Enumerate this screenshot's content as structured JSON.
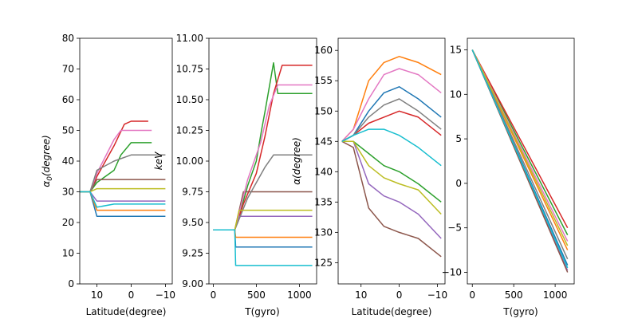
{
  "chart_data": [
    {
      "type": "line",
      "xlabel": "Latitude(degree)",
      "ylabel": "α₀(degree)",
      "ylabel_parts": {
        "sym": "α",
        "sub": "0",
        "rest": "(degree)"
      },
      "xlim": [
        15,
        -12
      ],
      "ylim": [
        0,
        80
      ],
      "xticks": [
        10,
        0,
        -10
      ],
      "xtick_labels": [
        "10",
        "0",
        "−10"
      ],
      "yticks": [
        0,
        10,
        20,
        30,
        40,
        50,
        60,
        70,
        80
      ],
      "ytick_labels": [
        "0",
        "10",
        "20",
        "30",
        "40",
        "50",
        "60",
        "70",
        "80"
      ],
      "grid": false,
      "description_of_series": "Many particle trajectories: pitch angle starts near 30 deg at latitude ~14, scatters into bands between ~20 and ~56 deg and continues to latitude ~-10",
      "series": [
        {
          "color": "#1f77b4",
          "x": [
            15,
            12,
            10,
            5,
            0,
            -5,
            -10
          ],
          "y": [
            30,
            30,
            22,
            22,
            22,
            22,
            22
          ]
        },
        {
          "color": "#ff7f0e",
          "x": [
            15,
            12,
            10,
            5,
            0,
            -5,
            -10
          ],
          "y": [
            30,
            30,
            24,
            24,
            24,
            24,
            24
          ]
        },
        {
          "color": "#2ca02c",
          "x": [
            15,
            12,
            10,
            5,
            3,
            0,
            -5,
            -6
          ],
          "y": [
            30,
            30,
            33,
            37,
            42,
            46,
            46,
            46
          ]
        },
        {
          "color": "#d62728",
          "x": [
            15,
            12,
            10,
            5,
            2,
            0,
            -5
          ],
          "y": [
            30,
            30,
            35,
            45,
            52,
            53,
            53
          ]
        },
        {
          "color": "#9467bd",
          "x": [
            15,
            12,
            10,
            5,
            0,
            -5,
            -10
          ],
          "y": [
            30,
            30,
            27,
            27,
            27,
            27,
            27
          ]
        },
        {
          "color": "#8c564b",
          "x": [
            15,
            12,
            10,
            5,
            0,
            -5,
            -10
          ],
          "y": [
            30,
            30,
            34,
            34,
            34,
            34,
            34
          ]
        },
        {
          "color": "#e377c2",
          "x": [
            15,
            12,
            10,
            5,
            3,
            0,
            -6
          ],
          "y": [
            30,
            30,
            36,
            47,
            50,
            50,
            50
          ]
        },
        {
          "color": "#7f7f7f",
          "x": [
            15,
            12,
            10,
            5,
            0,
            -5,
            -10
          ],
          "y": [
            30,
            30,
            37,
            40,
            42,
            42,
            42
          ]
        },
        {
          "color": "#bcbd22",
          "x": [
            15,
            12,
            10,
            5,
            0,
            -5,
            -10
          ],
          "y": [
            30,
            30,
            31,
            31,
            31,
            31,
            31
          ]
        },
        {
          "color": "#17becf",
          "x": [
            15,
            12,
            10,
            5,
            0,
            -5,
            -10
          ],
          "y": [
            30,
            30,
            25,
            26,
            26,
            26,
            26
          ]
        }
      ]
    },
    {
      "type": "line",
      "xlabel": "T(gyro)",
      "ylabel": "keV",
      "xlim": [
        -50,
        1200
      ],
      "ylim": [
        9.0,
        11.0
      ],
      "xticks": [
        0,
        500,
        1000
      ],
      "xtick_labels": [
        "0",
        "500",
        "1000"
      ],
      "yticks": [
        9.0,
        9.25,
        9.5,
        9.75,
        10.0,
        10.25,
        10.5,
        10.75,
        11.0
      ],
      "ytick_labels": [
        "9.00",
        "9.25",
        "9.50",
        "9.75",
        "10.00",
        "10.25",
        "10.50",
        "10.75",
        "11.00"
      ],
      "grid": false,
      "description_of_series": "Energy of many particles starts near 9.44 keV and splits into flat levels between ~9.1 and ~10.8 keV after T~250",
      "series": [
        {
          "color": "#1f77b4",
          "x": [
            0,
            250,
            260,
            1150
          ],
          "y": [
            9.44,
            9.44,
            9.3,
            9.3
          ]
        },
        {
          "color": "#ff7f0e",
          "x": [
            0,
            250,
            260,
            1150
          ],
          "y": [
            9.44,
            9.44,
            9.38,
            9.38
          ]
        },
        {
          "color": "#2ca02c",
          "x": [
            0,
            250,
            300,
            400,
            500,
            560,
            600,
            700,
            750,
            1150
          ],
          "y": [
            9.44,
            9.44,
            9.55,
            9.8,
            10.0,
            10.25,
            10.4,
            10.8,
            10.55,
            10.55
          ]
        },
        {
          "color": "#d62728",
          "x": [
            0,
            250,
            350,
            500,
            600,
            700,
            800,
            1150
          ],
          "y": [
            9.44,
            9.44,
            9.65,
            9.9,
            10.2,
            10.55,
            10.78,
            10.78
          ]
        },
        {
          "color": "#9467bd",
          "x": [
            0,
            250,
            300,
            1150
          ],
          "y": [
            9.44,
            9.44,
            9.55,
            9.55
          ]
        },
        {
          "color": "#8c564b",
          "x": [
            0,
            250,
            350,
            1150
          ],
          "y": [
            9.44,
            9.44,
            9.75,
            9.75
          ]
        },
        {
          "color": "#e377c2",
          "x": [
            0,
            250,
            400,
            550,
            650,
            750,
            1150
          ],
          "y": [
            9.44,
            9.44,
            9.85,
            10.15,
            10.45,
            10.62,
            10.62
          ]
        },
        {
          "color": "#7f7f7f",
          "x": [
            0,
            250,
            400,
            600,
            700,
            1150
          ],
          "y": [
            9.44,
            9.44,
            9.7,
            9.95,
            10.05,
            10.05
          ]
        },
        {
          "color": "#bcbd22",
          "x": [
            0,
            250,
            300,
            1150
          ],
          "y": [
            9.44,
            9.44,
            9.6,
            9.6
          ]
        },
        {
          "color": "#17becf",
          "x": [
            0,
            250,
            260,
            1150
          ],
          "y": [
            9.44,
            9.44,
            9.15,
            9.15
          ]
        }
      ]
    },
    {
      "type": "line",
      "xlabel": "Latitude(degree)",
      "ylabel": "α(degree)",
      "ylabel_parts": {
        "sym": "α",
        "rest": "(degree)"
      },
      "xlim": [
        16,
        -12
      ],
      "ylim": [
        121.5,
        162
      ],
      "xticks": [
        10,
        0,
        -10
      ],
      "xtick_labels": [
        "10",
        "0",
        "−10"
      ],
      "yticks": [
        125,
        130,
        135,
        140,
        145,
        150,
        155,
        160
      ],
      "ytick_labels": [
        "125",
        "130",
        "135",
        "140",
        "145",
        "150",
        "155",
        "160"
      ],
      "grid": false,
      "description_of_series": "Local pitch angle oscillating near 145 deg at latitude ~14, then spreading into curved bands between ~123 and ~160 deg toward latitude ~-11",
      "series": [
        {
          "color": "#1f77b4",
          "x": [
            15,
            12,
            8,
            4,
            0,
            -5,
            -11
          ],
          "y": [
            145,
            146,
            150,
            153,
            154,
            152,
            149
          ]
        },
        {
          "color": "#ff7f0e",
          "x": [
            15,
            12,
            8,
            4,
            0,
            -5,
            -11
          ],
          "y": [
            145,
            147,
            155,
            158,
            159,
            158,
            156
          ]
        },
        {
          "color": "#2ca02c",
          "x": [
            15,
            12,
            8,
            4,
            0,
            -5,
            -11
          ],
          "y": [
            145,
            145,
            143,
            141,
            140,
            138,
            135
          ]
        },
        {
          "color": "#d62728",
          "x": [
            15,
            12,
            8,
            4,
            0,
            -5,
            -11
          ],
          "y": [
            145,
            146,
            148,
            149,
            150,
            149,
            146
          ]
        },
        {
          "color": "#9467bd",
          "x": [
            15,
            12,
            8,
            4,
            0,
            -5,
            -11
          ],
          "y": [
            145,
            145,
            138,
            136,
            135,
            133,
            129
          ]
        },
        {
          "color": "#8c564b",
          "x": [
            15,
            12,
            8,
            4,
            0,
            -5,
            -11
          ],
          "y": [
            145,
            144,
            134,
            131,
            130,
            129,
            126
          ]
        },
        {
          "color": "#e377c2",
          "x": [
            15,
            12,
            8,
            4,
            0,
            -5,
            -11
          ],
          "y": [
            145,
            147,
            152,
            156,
            157,
            156,
            153
          ]
        },
        {
          "color": "#7f7f7f",
          "x": [
            15,
            12,
            8,
            4,
            0,
            -5,
            -11
          ],
          "y": [
            145,
            146,
            149,
            151,
            152,
            150,
            147
          ]
        },
        {
          "color": "#bcbd22",
          "x": [
            15,
            12,
            8,
            4,
            0,
            -5,
            -11
          ],
          "y": [
            145,
            145,
            141,
            139,
            138,
            137,
            133
          ]
        },
        {
          "color": "#17becf",
          "x": [
            15,
            12,
            8,
            4,
            0,
            -5,
            -11
          ],
          "y": [
            145,
            146,
            147,
            147,
            146,
            144,
            141
          ]
        }
      ]
    },
    {
      "type": "line",
      "xlabel": "T(gyro)",
      "ylabel": "",
      "xlim": [
        -60,
        1230
      ],
      "ylim": [
        -11.3,
        16.3
      ],
      "xticks": [
        0,
        500,
        1000
      ],
      "xtick_labels": [
        "0",
        "500",
        "1000"
      ],
      "yticks": [
        -10,
        -5,
        0,
        5,
        10,
        15
      ],
      "ytick_labels": [
        "−10",
        "−5",
        "0",
        "5",
        "10",
        "15"
      ],
      "grid": false,
      "description_of_series": "Latitude decreasing roughly linearly from 15 at T=0 to between about -5 and -10 at T~1150",
      "series": [
        {
          "color": "#1f77b4",
          "x": [
            0,
            1150
          ],
          "y": [
            15,
            -9.2
          ]
        },
        {
          "color": "#ff7f0e",
          "x": [
            0,
            1150
          ],
          "y": [
            15,
            -7.5
          ]
        },
        {
          "color": "#2ca02c",
          "x": [
            0,
            1150
          ],
          "y": [
            15,
            -5.8
          ]
        },
        {
          "color": "#d62728",
          "x": [
            0,
            1150
          ],
          "y": [
            15,
            -5.0
          ]
        },
        {
          "color": "#9467bd",
          "x": [
            0,
            1150
          ],
          "y": [
            15,
            -9.8
          ]
        },
        {
          "color": "#8c564b",
          "x": [
            0,
            1150
          ],
          "y": [
            15,
            -10.0
          ]
        },
        {
          "color": "#e377c2",
          "x": [
            0,
            1150
          ],
          "y": [
            15,
            -6.5
          ]
        },
        {
          "color": "#7f7f7f",
          "x": [
            0,
            1150
          ],
          "y": [
            15,
            -8.5
          ]
        },
        {
          "color": "#bcbd22",
          "x": [
            0,
            1150
          ],
          "y": [
            15,
            -7.0
          ]
        },
        {
          "color": "#17becf",
          "x": [
            0,
            1150
          ],
          "y": [
            15,
            -9.5
          ]
        }
      ]
    }
  ]
}
